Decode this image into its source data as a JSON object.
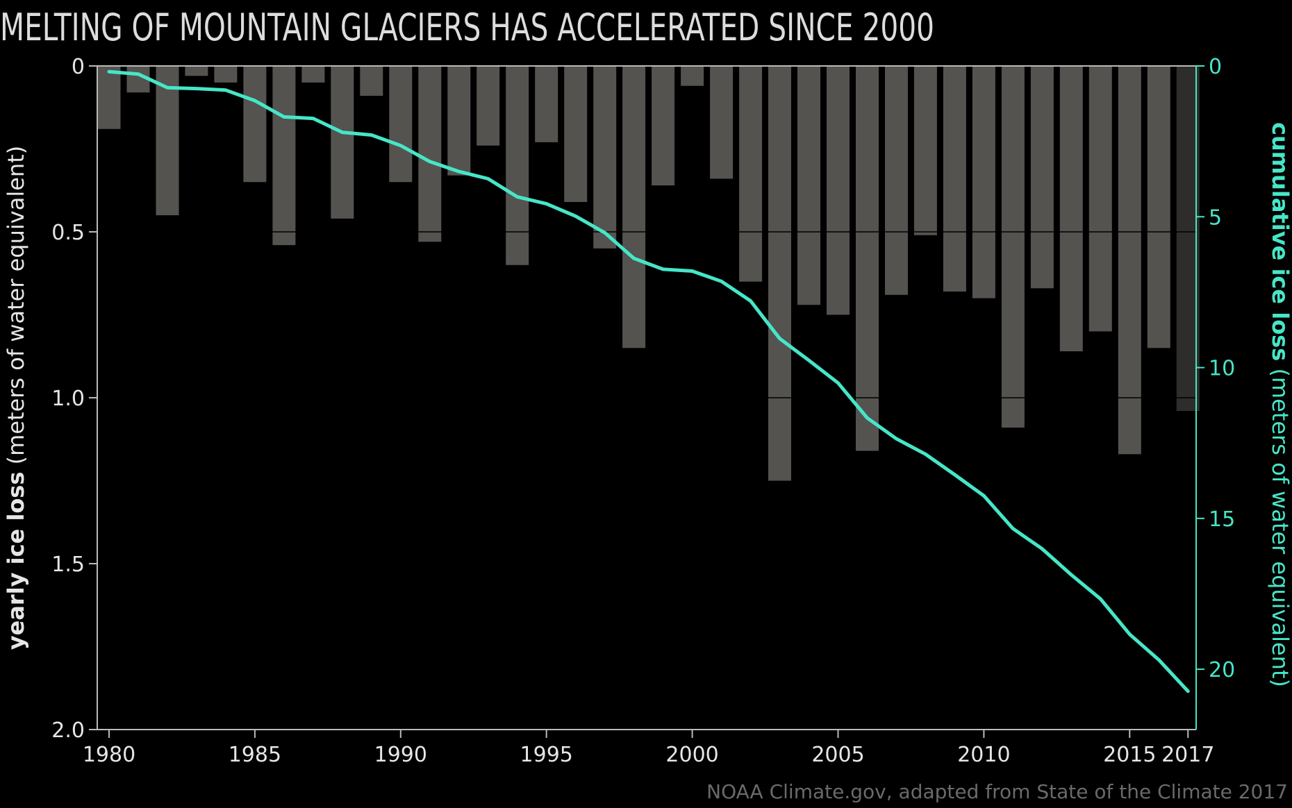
{
  "chart_data": {
    "type": "bar",
    "title": "MELTING OF MOUNTAIN GLACIERS HAS ACCELERATED SINCE 2000",
    "ylabel_left_bold": "yearly ice loss",
    "ylabel_left_rest": " (meters of water equivalent)",
    "ylabel_right_bold": "cumulative ice loss",
    "ylabel_right_rest": " (meters of water equivalent)",
    "credit": "NOAA Climate.gov, adapted from State of the Climate 2017",
    "ylim_left": [
      0,
      2.0
    ],
    "ylim_right": [
      0,
      22
    ],
    "left_ticks": [
      "0",
      "0.5",
      "1.0",
      "1.5",
      "2.0"
    ],
    "right_ticks": [
      "0",
      "5",
      "10",
      "15",
      "20"
    ],
    "x_tick_labels": [
      "1980",
      "1985",
      "1990",
      "1995",
      "2000",
      "2005",
      "2010",
      "2015",
      "2017"
    ],
    "years": [
      1980,
      1981,
      1982,
      1983,
      1984,
      1985,
      1986,
      1987,
      1988,
      1989,
      1990,
      1991,
      1992,
      1993,
      1994,
      1995,
      1996,
      1997,
      1998,
      1999,
      2000,
      2001,
      2002,
      2003,
      2004,
      2005,
      2006,
      2007,
      2008,
      2009,
      2010,
      2011,
      2012,
      2013,
      2014,
      2015,
      2016,
      2017
    ],
    "series": [
      {
        "name": "yearly ice loss",
        "values": [
          0.19,
          0.08,
          0.45,
          0.03,
          0.05,
          0.35,
          0.54,
          0.05,
          0.46,
          0.09,
          0.35,
          0.53,
          0.33,
          0.24,
          0.6,
          0.23,
          0.41,
          0.55,
          0.85,
          0.36,
          0.06,
          0.34,
          0.65,
          1.25,
          0.72,
          0.75,
          1.16,
          0.69,
          0.51,
          0.68,
          0.7,
          1.09,
          0.67,
          0.86,
          0.8,
          1.17,
          0.85,
          1.04
        ]
      },
      {
        "name": "cumulative ice loss",
        "values": [
          0.19,
          0.27,
          0.72,
          0.75,
          0.8,
          1.15,
          1.69,
          1.74,
          2.2,
          2.29,
          2.64,
          3.17,
          3.5,
          3.74,
          4.34,
          4.57,
          4.98,
          5.53,
          6.38,
          6.74,
          6.8,
          7.14,
          7.79,
          9.04,
          9.76,
          10.51,
          11.67,
          12.36,
          12.87,
          13.55,
          14.25,
          15.34,
          16.01,
          16.87,
          17.67,
          18.84,
          19.69,
          20.73
        ]
      }
    ],
    "colors": {
      "background": "#000000",
      "bar": "#55534f",
      "bar_last": "#2e2d2b",
      "line": "#46e6c8",
      "axis": "#bbbbbb",
      "title": "#dddddd",
      "credit": "#6a6a6a"
    },
    "grid": false,
    "legend": "none"
  }
}
